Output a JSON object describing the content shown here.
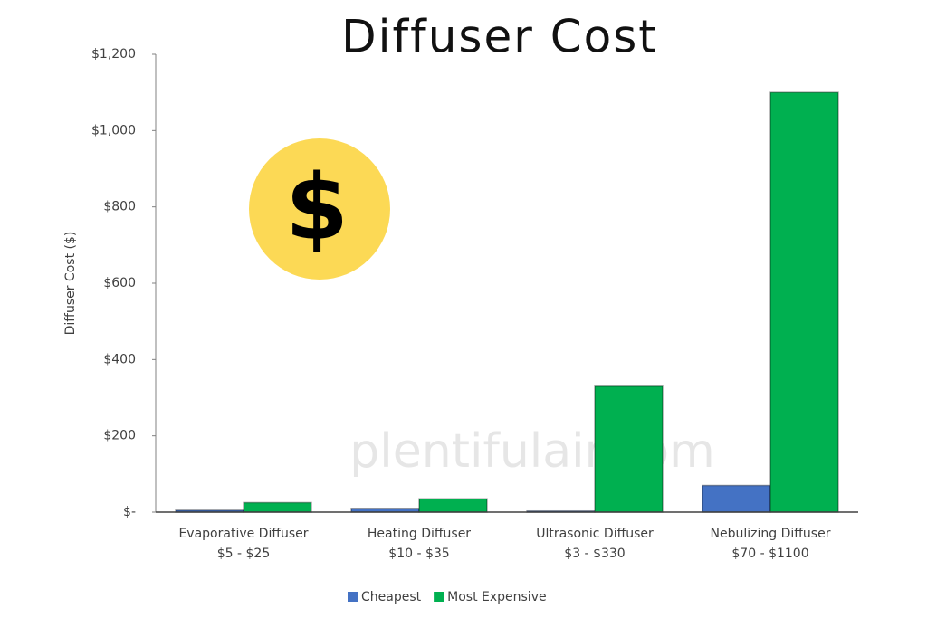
{
  "chart_data": {
    "type": "bar",
    "title": "Diffuser Cost",
    "y_label": "Diffuser Cost ($)",
    "watermark": "plentifulair.com",
    "icon_text": "$",
    "categories": [
      [
        "Evaporative Diffuser",
        "$5 - $25"
      ],
      [
        "Heating Diffuser",
        "$10 - $35"
      ],
      [
        "Ultrasonic Diffuser",
        "$3 - $330"
      ],
      [
        "Nebulizing Diffuser",
        "$70 - $1100"
      ]
    ],
    "series": [
      {
        "name": "Cheapest",
        "color": "#4472c4",
        "values": [
          5,
          10,
          3,
          70
        ]
      },
      {
        "name": "Most Expensive",
        "color": "#00b050",
        "values": [
          25,
          35,
          330,
          1100
        ]
      }
    ],
    "ylim": [
      0,
      1200
    ],
    "yticks": [
      {
        "value": 0,
        "label": "$-"
      },
      {
        "value": 200,
        "label": "$200"
      },
      {
        "value": 400,
        "label": "$400"
      },
      {
        "value": 600,
        "label": "$600"
      },
      {
        "value": 800,
        "label": "$800"
      },
      {
        "value": 1000,
        "label": "$1,000"
      },
      {
        "value": 1200,
        "label": "$1,200"
      }
    ],
    "grid": false,
    "legend": "bottom"
  }
}
